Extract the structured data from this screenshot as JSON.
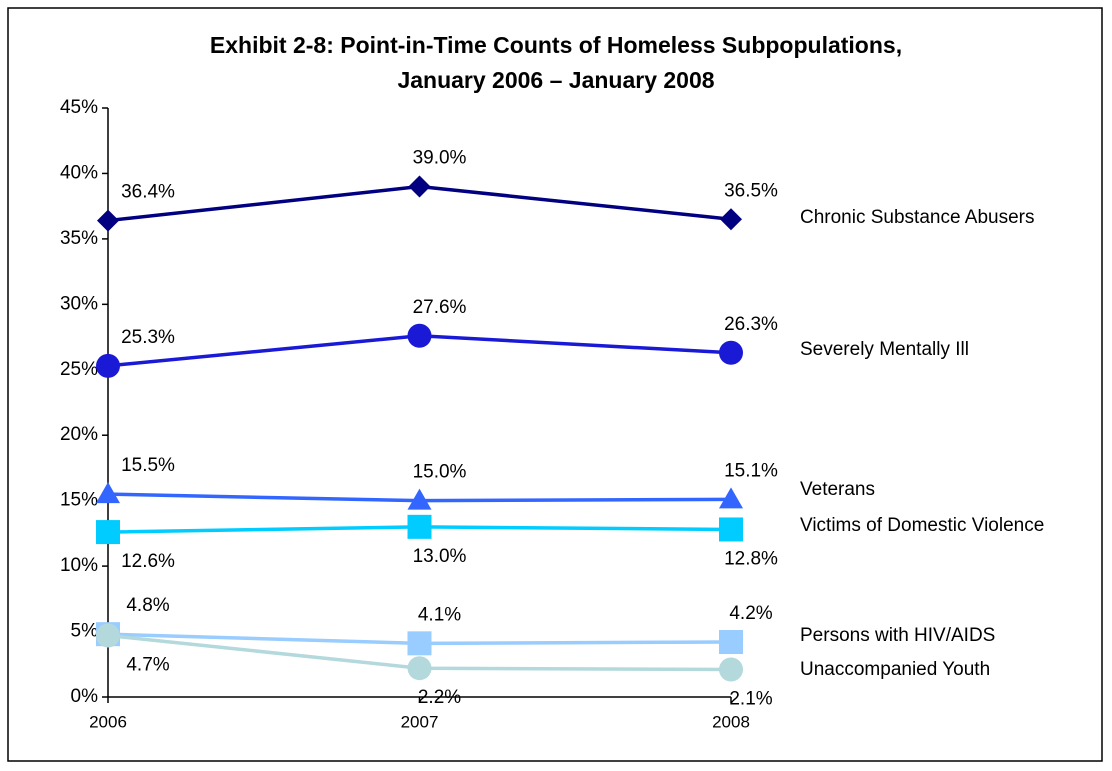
{
  "chart_data": {
    "type": "line",
    "title": [
      "Exhibit 2-8: Point-in-Time Counts of Homeless Subpopulations,",
      "January 2006 – January 2008"
    ],
    "categories": [
      "2006",
      "2007",
      "2008"
    ],
    "ylim": [
      0,
      45
    ],
    "yticks": [
      {
        "value": 0,
        "label": "0%"
      },
      {
        "value": 5,
        "label": "5%"
      },
      {
        "value": 10,
        "label": "10%"
      },
      {
        "value": 15,
        "label": "15%"
      },
      {
        "value": 20,
        "label": "20%"
      },
      {
        "value": 25,
        "label": "25%"
      },
      {
        "value": 30,
        "label": "30%"
      },
      {
        "value": 35,
        "label": "35%"
      },
      {
        "value": 40,
        "label": "40%"
      },
      {
        "value": 45,
        "label": "45%"
      }
    ],
    "grid": false,
    "series": [
      {
        "name": "Chronic Substance Abusers",
        "color": "#000080",
        "marker": "diamond",
        "values": [
          36.4,
          39.0,
          36.5
        ],
        "value_labels": [
          "36.4%",
          "39.0%",
          "36.5%"
        ]
      },
      {
        "name": "Severely Mentally Ill",
        "color": "#1a1ad6",
        "marker": "circle",
        "values": [
          25.3,
          27.6,
          26.3
        ],
        "value_labels": [
          "25.3%",
          "27.6%",
          "26.3%"
        ]
      },
      {
        "name": "Veterans",
        "color": "#3366ff",
        "marker": "triangle",
        "values": [
          15.5,
          15.0,
          15.1
        ],
        "value_labels": [
          "15.5%",
          "15.0%",
          "15.1%"
        ]
      },
      {
        "name": "Victims of Domestic Violence",
        "color": "#00ccff",
        "marker": "square",
        "values": [
          12.6,
          13.0,
          12.8
        ],
        "value_labels": [
          "12.6%",
          "13.0%",
          "12.8%"
        ]
      },
      {
        "name": "Persons with HIV/AIDS",
        "color": "#99ccff",
        "marker": "square",
        "values": [
          4.8,
          4.1,
          4.2
        ],
        "value_labels": [
          "4.8%",
          "4.1%",
          "4.2%"
        ]
      },
      {
        "name": "Unaccompanied Youth",
        "color": "#b3d9dc",
        "marker": "circle",
        "values": [
          4.7,
          2.2,
          2.1
        ],
        "value_labels": [
          "4.7%",
          "2.2%",
          "2.1%"
        ]
      }
    ]
  }
}
